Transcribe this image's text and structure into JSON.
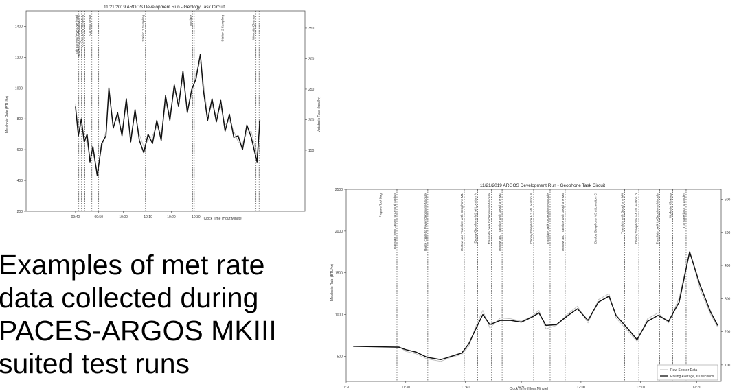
{
  "caption": {
    "lines": [
      "Examples of met rate",
      "data collected during",
      "PACES-ARGOS MKIII",
      "suited test runs"
    ]
  },
  "chart_data": [
    {
      "type": "line",
      "title": "11/21/2019 ARGOS Development Run - Geology Task Circuit",
      "xlabel": "Clock Time (Hour:Minute)",
      "ylabel": "Metabolic Rate (BTU/hr)",
      "ylabel_right": "Metabolic Rate (kcal/hr)",
      "xlim": [
        9.33,
        11.25
      ],
      "ylim": [
        200,
        1500
      ],
      "yticks": [
        200,
        400,
        600,
        800,
        1000,
        1200,
        1400
      ],
      "xticks": [
        {
          "v": 9.67,
          "label": "09:40"
        },
        {
          "v": 9.83,
          "label": "09:50"
        },
        {
          "v": 10.0,
          "label": "10:00"
        },
        {
          "v": 10.17,
          "label": "10:10"
        },
        {
          "v": 10.33,
          "label": "10:20"
        },
        {
          "v": 10.5,
          "label": "10:30"
        }
      ],
      "ylim_right": [
        50,
        378
      ],
      "yticks_right": [
        150,
        200,
        250,
        300,
        350
      ],
      "events": [
        {
          "x": 9.693,
          "label": "Suit Egress / KVA Overhead"
        },
        {
          "x": 9.712,
          "label": "Site Survey and Observations"
        },
        {
          "x": 9.735,
          "label": "Contingency Sampling"
        },
        {
          "x": 9.783,
          "label": "Camera Setup"
        },
        {
          "x": 9.83,
          "label": ""
        },
        {
          "x": 10.152,
          "label": "Station 1 Sampling"
        },
        {
          "x": 10.478,
          "label": "Translate"
        },
        {
          "x": 10.488,
          "label": ""
        },
        {
          "x": 10.7,
          "label": "Station 2 Sampling"
        },
        {
          "x": 10.913,
          "label": "Worksite Cleanup"
        },
        {
          "x": 10.934,
          "label": ""
        }
      ],
      "series": [
        {
          "values": [
            [
              9.67,
              900
            ],
            [
              9.69,
              720
            ],
            [
              9.71,
              760
            ],
            [
              9.73,
              690
            ],
            [
              9.75,
              640
            ],
            [
              9.77,
              560
            ],
            [
              9.79,
              580
            ],
            [
              9.82,
              460
            ],
            [
              9.85,
              610
            ],
            [
              9.88,
              720
            ],
            [
              9.9,
              960
            ],
            [
              9.93,
              770
            ],
            [
              9.96,
              800
            ],
            [
              9.99,
              720
            ],
            [
              10.02,
              890
            ],
            [
              10.05,
              690
            ],
            [
              10.08,
              830
            ],
            [
              10.11,
              700
            ],
            [
              10.14,
              620
            ],
            [
              10.17,
              660
            ],
            [
              10.2,
              690
            ],
            [
              10.23,
              750
            ],
            [
              10.26,
              700
            ],
            [
              10.29,
              900
            ],
            [
              10.32,
              830
            ],
            [
              10.35,
              980
            ],
            [
              10.38,
              920
            ],
            [
              10.41,
              1060
            ],
            [
              10.44,
              870
            ],
            [
              10.47,
              950
            ],
            [
              10.5,
              1100
            ],
            [
              10.53,
              1170
            ],
            [
              10.55,
              1040
            ],
            [
              10.58,
              820
            ],
            [
              10.61,
              890
            ],
            [
              10.64,
              820
            ],
            [
              10.67,
              880
            ],
            [
              10.7,
              760
            ],
            [
              10.73,
              790
            ],
            [
              10.76,
              720
            ],
            [
              10.79,
              650
            ],
            [
              10.82,
              640
            ],
            [
              10.85,
              710
            ],
            [
              10.88,
              720
            ],
            [
              10.9,
              640
            ],
            [
              10.92,
              560
            ],
            [
              10.94,
              750
            ]
          ]
        },
        {
          "values": [
            [
              9.67,
              880
            ],
            [
              9.69,
              690
            ],
            [
              9.71,
              800
            ],
            [
              9.73,
              650
            ],
            [
              9.75,
              700
            ],
            [
              9.77,
              520
            ],
            [
              9.79,
              620
            ],
            [
              9.82,
              430
            ],
            [
              9.85,
              640
            ],
            [
              9.88,
              690
            ],
            [
              9.9,
              1000
            ],
            [
              9.93,
              740
            ],
            [
              9.96,
              840
            ],
            [
              9.99,
              690
            ],
            [
              10.02,
              930
            ],
            [
              10.05,
              650
            ],
            [
              10.08,
              860
            ],
            [
              10.11,
              660
            ],
            [
              10.14,
              580
            ],
            [
              10.17,
              700
            ],
            [
              10.2,
              640
            ],
            [
              10.23,
              790
            ],
            [
              10.26,
              660
            ],
            [
              10.29,
              950
            ],
            [
              10.32,
              790
            ],
            [
              10.35,
              1020
            ],
            [
              10.38,
              880
            ],
            [
              10.41,
              1110
            ],
            [
              10.44,
              840
            ],
            [
              10.47,
              990
            ],
            [
              10.5,
              1060
            ],
            [
              10.53,
              1220
            ],
            [
              10.55,
              990
            ],
            [
              10.58,
              790
            ],
            [
              10.61,
              930
            ],
            [
              10.64,
              780
            ],
            [
              10.67,
              920
            ],
            [
              10.7,
              720
            ],
            [
              10.73,
              830
            ],
            [
              10.76,
              680
            ],
            [
              10.79,
              690
            ],
            [
              10.82,
              600
            ],
            [
              10.85,
              760
            ],
            [
              10.88,
              680
            ],
            [
              10.9,
              600
            ],
            [
              10.92,
              520
            ],
            [
              10.94,
              790
            ]
          ]
        }
      ]
    },
    {
      "type": "line",
      "title": "11/21/2019 ARGOS Development Run - Geophone Task Circuit",
      "xlabel": "Clock Time (Hour:Minute)",
      "ylabel": "Metabolic Rate (BTU/hr)",
      "xlim": [
        11.33,
        12.4
      ],
      "ylim": [
        200,
        2500
      ],
      "yticks": [
        500,
        1000,
        1500,
        2000,
        2500
      ],
      "xticks": [
        {
          "v": 11.33,
          "label": "11:20"
        },
        {
          "v": 11.5,
          "label": "11:30"
        },
        {
          "v": 11.67,
          "label": "11:40"
        },
        {
          "v": 11.83,
          "label": "11:50"
        },
        {
          "v": 12.0,
          "label": "12:00"
        },
        {
          "v": 12.17,
          "label": "12:10"
        },
        {
          "v": 12.33,
          "label": "12:20"
        }
      ],
      "ylim_right": [
        50,
        630
      ],
      "yticks_right": [
        100,
        200,
        300,
        400,
        500,
        600
      ],
      "legend_position": "bottom-right",
      "legend": [
        "Raw Sensor Data",
        "Rolling Average, 60 seconds"
      ],
      "events": [
        {
          "x": 11.435,
          "label": "Prepare Tool Bag"
        },
        {
          "x": 11.475,
          "label": "Translate from Lander to Central Station"
        },
        {
          "x": 11.563,
          "label": "Route Cable to Power Geophone Module"
        },
        {
          "x": 11.667,
          "label": "Unstow and Translate with Geophone M1"
        },
        {
          "x": 11.705,
          "label": "Deploy Geophone M1 at Location A"
        },
        {
          "x": 11.745,
          "label": "Translate back to Geophone Module"
        },
        {
          "x": 11.775,
          "label": "Unstow and Translate with Geophone M2"
        },
        {
          "x": 11.865,
          "label": "Deploy Geophone M2 at Location B"
        },
        {
          "x": 11.912,
          "label": "Translate back to Geophone Module"
        },
        {
          "x": 11.955,
          "label": "Unstow and Translate with Geophone M3"
        },
        {
          "x": 12.048,
          "label": "Deploy Geophone M3 at Location C"
        },
        {
          "x": 12.125,
          "label": "Translate with Geophone M4"
        },
        {
          "x": 12.165,
          "label": "Deploy Geophone M4 at Location D"
        },
        {
          "x": 12.225,
          "label": "Translate back to Geophone Module"
        },
        {
          "x": 12.262,
          "label": "Worksite Cleanup"
        },
        {
          "x": 12.3,
          "label": "Translate back to Lander"
        }
      ],
      "series": [
        {
          "name": "Raw Sensor Data",
          "values": [
            [
              11.35,
              620
            ],
            [
              11.48,
              620
            ],
            [
              11.5,
              560
            ],
            [
              11.53,
              530
            ],
            [
              11.56,
              470
            ],
            [
              11.6,
              440
            ],
            [
              11.63,
              490
            ],
            [
              11.66,
              520
            ],
            [
              11.68,
              620
            ],
            [
              11.7,
              860
            ],
            [
              11.72,
              1050
            ],
            [
              11.74,
              840
            ],
            [
              11.77,
              960
            ],
            [
              11.8,
              950
            ],
            [
              11.83,
              920
            ],
            [
              11.86,
              980
            ],
            [
              11.88,
              1050
            ],
            [
              11.9,
              830
            ],
            [
              11.93,
              870
            ],
            [
              11.96,
              1000
            ],
            [
              11.99,
              1100
            ],
            [
              12.02,
              900
            ],
            [
              12.05,
              1180
            ],
            [
              12.08,
              1250
            ],
            [
              12.1,
              960
            ],
            [
              12.13,
              820
            ],
            [
              12.16,
              680
            ],
            [
              12.19,
              950
            ],
            [
              12.22,
              1020
            ],
            [
              12.25,
              900
            ],
            [
              12.28,
              1200
            ],
            [
              12.31,
              1760
            ],
            [
              12.34,
              1300
            ],
            [
              12.37,
              1000
            ],
            [
              12.39,
              850
            ]
          ]
        },
        {
          "name": "Rolling Average, 60 seconds",
          "values": [
            [
              11.35,
              620
            ],
            [
              11.48,
              610
            ],
            [
              11.5,
              580
            ],
            [
              11.53,
              550
            ],
            [
              11.56,
              490
            ],
            [
              11.6,
              460
            ],
            [
              11.63,
              500
            ],
            [
              11.66,
              540
            ],
            [
              11.68,
              650
            ],
            [
              11.7,
              830
            ],
            [
              11.72,
              1000
            ],
            [
              11.74,
              880
            ],
            [
              11.77,
              930
            ],
            [
              11.8,
              930
            ],
            [
              11.83,
              910
            ],
            [
              11.86,
              970
            ],
            [
              11.88,
              1020
            ],
            [
              11.9,
              870
            ],
            [
              11.93,
              880
            ],
            [
              11.96,
              980
            ],
            [
              11.99,
              1070
            ],
            [
              12.02,
              930
            ],
            [
              12.05,
              1150
            ],
            [
              12.08,
              1220
            ],
            [
              12.1,
              990
            ],
            [
              12.13,
              850
            ],
            [
              12.16,
              700
            ],
            [
              12.19,
              920
            ],
            [
              12.22,
              990
            ],
            [
              12.25,
              920
            ],
            [
              12.28,
              1150
            ],
            [
              12.31,
              1750
            ],
            [
              12.34,
              1350
            ],
            [
              12.37,
              1030
            ],
            [
              12.39,
              870
            ]
          ]
        }
      ]
    }
  ]
}
